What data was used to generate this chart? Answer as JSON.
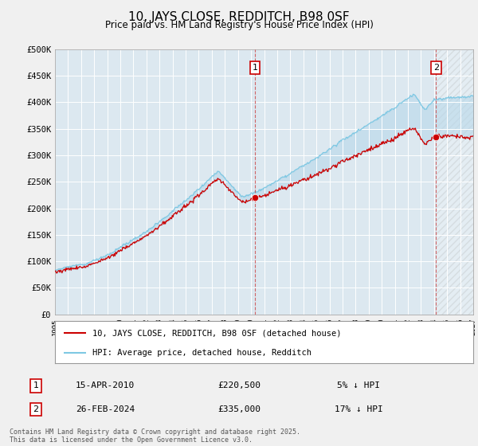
{
  "title": "10, JAYS CLOSE, REDDITCH, B98 0SF",
  "subtitle": "Price paid vs. HM Land Registry's House Price Index (HPI)",
  "ylabel_ticks": [
    "£0",
    "£50K",
    "£100K",
    "£150K",
    "£200K",
    "£250K",
    "£300K",
    "£350K",
    "£400K",
    "£450K",
    "£500K"
  ],
  "ytick_values": [
    0,
    50000,
    100000,
    150000,
    200000,
    250000,
    300000,
    350000,
    400000,
    450000,
    500000
  ],
  "ylim": [
    0,
    500000
  ],
  "xlim_start": 1995.0,
  "xlim_end": 2027.0,
  "hpi_color": "#7ec8e3",
  "price_color": "#cc0000",
  "transaction1_year": 2010.29,
  "transaction1_price": 220500,
  "transaction2_year": 2024.16,
  "transaction2_price": 335000,
  "legend_line1": "10, JAYS CLOSE, REDDITCH, B98 0SF (detached house)",
  "legend_line2": "HPI: Average price, detached house, Redditch",
  "annotation1_date": "15-APR-2010",
  "annotation1_price": "£220,500",
  "annotation1_hpi": "5% ↓ HPI",
  "annotation2_date": "26-FEB-2024",
  "annotation2_price": "£335,000",
  "annotation2_hpi": "17% ↓ HPI",
  "footnote": "Contains HM Land Registry data © Crown copyright and database right 2025.\nThis data is licensed under the Open Government Licence v3.0.",
  "background_color": "#f0f0f0",
  "plot_bg_color": "#dce8f0",
  "hatch_color": "#c0d8e8"
}
